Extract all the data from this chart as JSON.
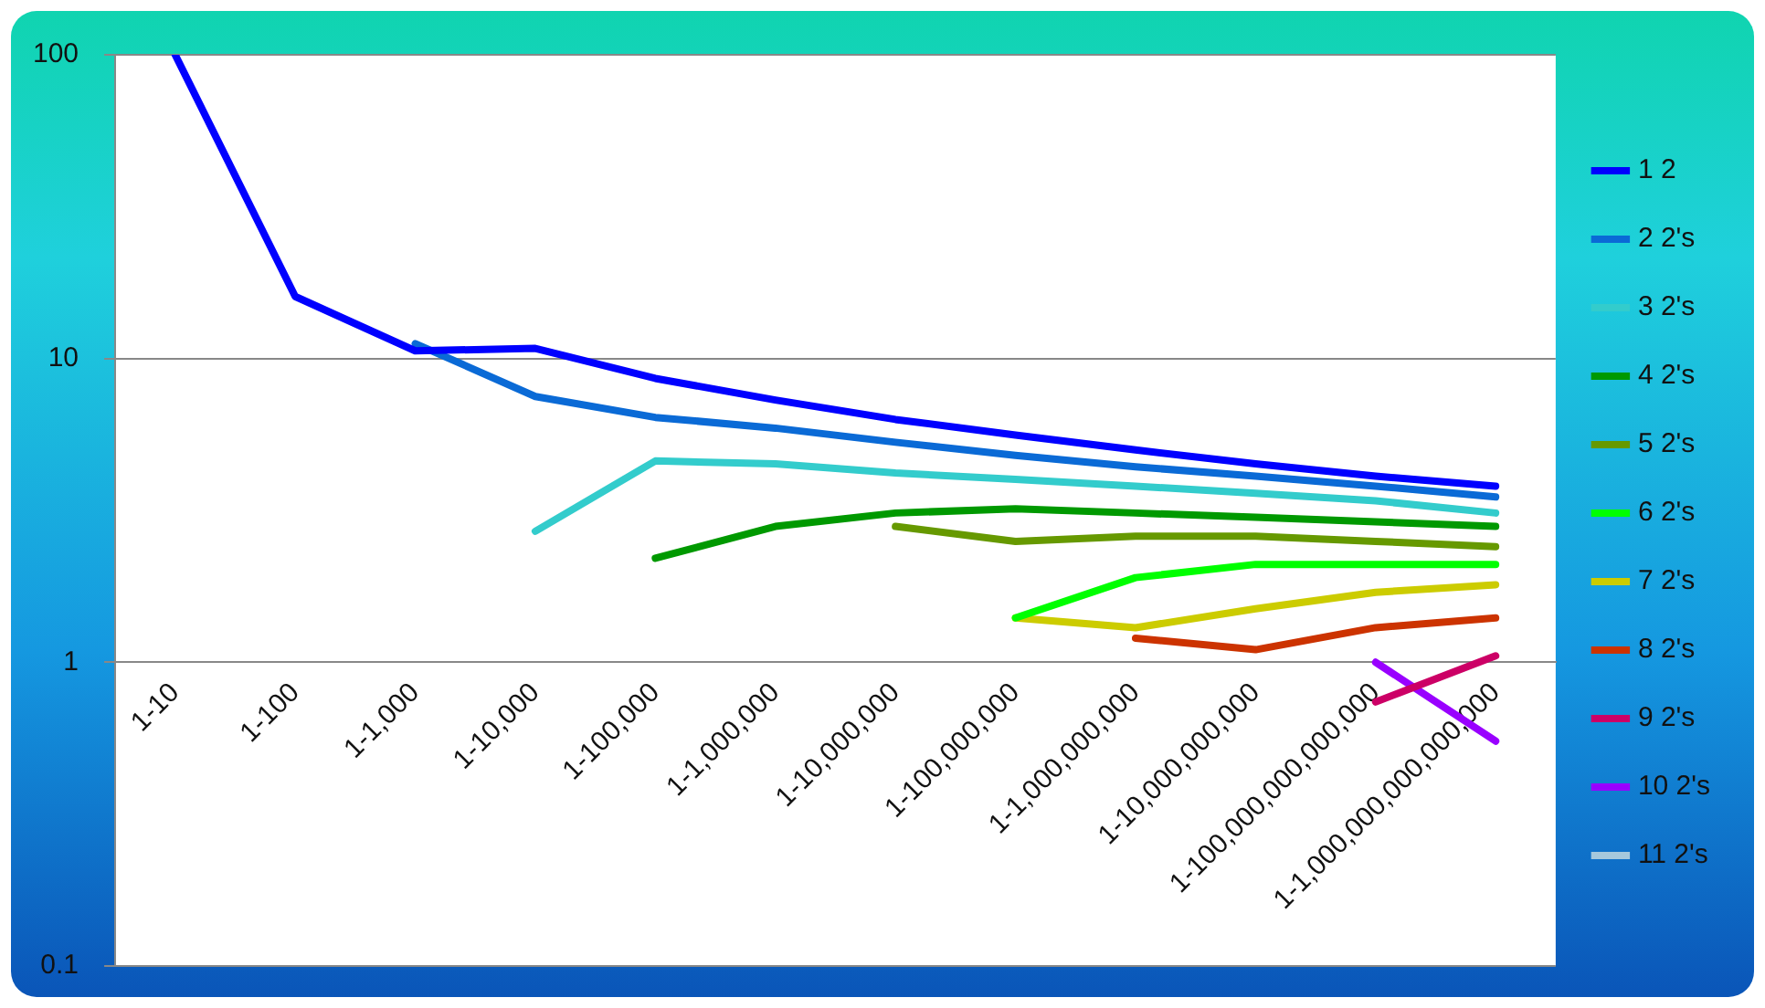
{
  "chart_data": {
    "type": "line",
    "log": "y",
    "grid": "y",
    "legend": "right",
    "marker": "none",
    "categories": [
      "1-10",
      "1-100",
      "1-1,000",
      "1-10,000",
      "1-100,000",
      "1-1,000,000",
      "1-10,000,000",
      "1-100,000,000",
      "1-1,000,000,000",
      "1-10,000,000,000",
      "1-100,000,000,000,000",
      "1-1,000,000,000,000,000"
    ],
    "ylim": [
      0.1,
      100
    ],
    "yticks": [
      0.1,
      1,
      10,
      100
    ],
    "series": [
      {
        "name": "1 2",
        "color": "#0000ff",
        "values": [
          100,
          16,
          10.6,
          10.8,
          8.6,
          7.3,
          6.3,
          5.6,
          5.0,
          4.5,
          4.1,
          3.8
        ]
      },
      {
        "name": "2 2's",
        "color": "#0a6ad6",
        "values": [
          null,
          null,
          11.2,
          7.5,
          6.4,
          5.9,
          5.3,
          4.8,
          4.4,
          4.1,
          3.8,
          3.5
        ]
      },
      {
        "name": "3 2's",
        "color": "#33cccc",
        "values": [
          null,
          null,
          null,
          2.7,
          4.6,
          4.5,
          4.2,
          4.0,
          3.8,
          3.6,
          3.4,
          3.1
        ]
      },
      {
        "name": "4 2's",
        "color": "#009900",
        "values": [
          null,
          null,
          null,
          null,
          2.2,
          2.8,
          3.1,
          3.2,
          3.1,
          3.0,
          2.9,
          2.8
        ]
      },
      {
        "name": "5 2's",
        "color": "#669900",
        "values": [
          null,
          null,
          null,
          null,
          null,
          null,
          2.8,
          2.5,
          2.6,
          2.6,
          2.5,
          2.4
        ]
      },
      {
        "name": "6 2's",
        "color": "#00ff00",
        "values": [
          null,
          null,
          null,
          null,
          null,
          null,
          null,
          1.4,
          1.9,
          2.1,
          2.1,
          2.1
        ]
      },
      {
        "name": "7 2's",
        "color": "#cccc00",
        "values": [
          null,
          null,
          null,
          null,
          null,
          null,
          null,
          1.4,
          1.3,
          1.5,
          1.7,
          1.8
        ]
      },
      {
        "name": "8 2's",
        "color": "#cc3300",
        "values": [
          null,
          null,
          null,
          null,
          null,
          null,
          null,
          null,
          1.2,
          1.1,
          1.3,
          1.4
        ]
      },
      {
        "name": "9 2's",
        "color": "#cc0066",
        "values": [
          null,
          null,
          null,
          null,
          null,
          null,
          null,
          null,
          null,
          null,
          0.74,
          1.05
        ]
      },
      {
        "name": "10 2's",
        "color": "#9900ff",
        "values": [
          null,
          null,
          null,
          null,
          null,
          null,
          null,
          null,
          null,
          null,
          1.0,
          0.55
        ]
      },
      {
        "name": "11 2's",
        "color": "#a6c8dc",
        "values": [
          null,
          null,
          null,
          null,
          null,
          null,
          null,
          null,
          null,
          null,
          null,
          null
        ]
      }
    ]
  }
}
